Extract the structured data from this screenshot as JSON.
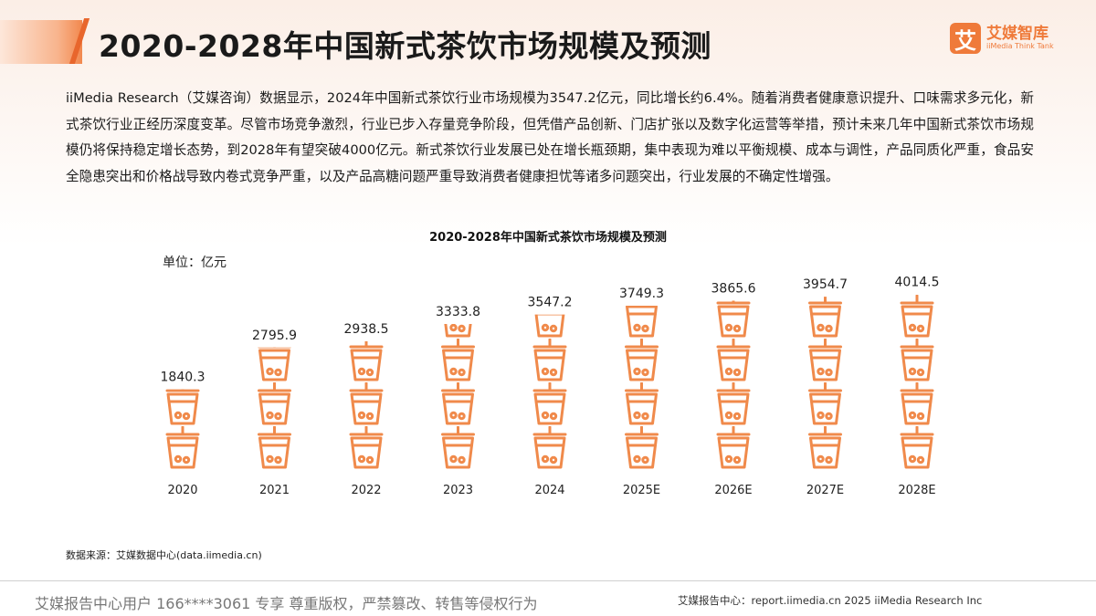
{
  "page": {
    "title": "2020-2028年中国新式茶饮市场规模及预测",
    "body": "iiMedia Research（艾媒咨询）数据显示，2024年中国新式茶饮行业市场规模为3547.2亿元，同比增长约6.4%。随着消费者健康意识提升、口味需求多元化，新式茶饮行业正经历深度变革。尽管市场竞争激烈，行业已步入存量竞争阶段，但凭借产品创新、门店扩张以及数字化运营等举措，预计未来几年中国新式茶饮市场规模仍将保持稳定增长态势，到2028年有望突破4000亿元。新式茶饮行业发展已处在增长瓶颈期，集中表现为难以平衡规模、成本与调性，产品同质化严重，食品安全隐患突出和价格战导致内卷式竞争严重，以及产品高糖问题严重导致消费者健康担忧等诸多问题突出，行业发展的不确定性增强。",
    "source": "数据来源：艾媒数据中心(data.iimedia.cn)"
  },
  "logo": {
    "mark": "艾",
    "name_cn": "艾媒智库",
    "name_en": "iiMedia Think Tank"
  },
  "footer": {
    "left": "艾媒报告中心用户 166****3061 专享 尊重版权，严禁篡改、转售等侵权行为",
    "right": "艾媒报告中心：report.iimedia.cn   2025 iiMedia Research Inc"
  },
  "colors": {
    "accent": "#ef7a3a",
    "icon": "#f08a4b"
  },
  "chart_data": {
    "type": "bar",
    "title": "2020-2028年中国新式茶饮市场规模及预测",
    "unit": "单位：亿元",
    "categories": [
      "2020",
      "2021",
      "2022",
      "2023",
      "2024",
      "2025E",
      "2026E",
      "2027E",
      "2028E"
    ],
    "values": [
      1840.3,
      2795.9,
      2938.5,
      3333.8,
      3547.2,
      3749.3,
      3865.6,
      3954.7,
      4014.5
    ],
    "value_labels": [
      "1840.3",
      "2795.9",
      "2938.5",
      "3333.8",
      "3547.2",
      "3749.3",
      "3865.6",
      "3954.7",
      "4014.5"
    ],
    "icon": "milk-tea-cup-icon",
    "value_per_icon": 1000
  }
}
